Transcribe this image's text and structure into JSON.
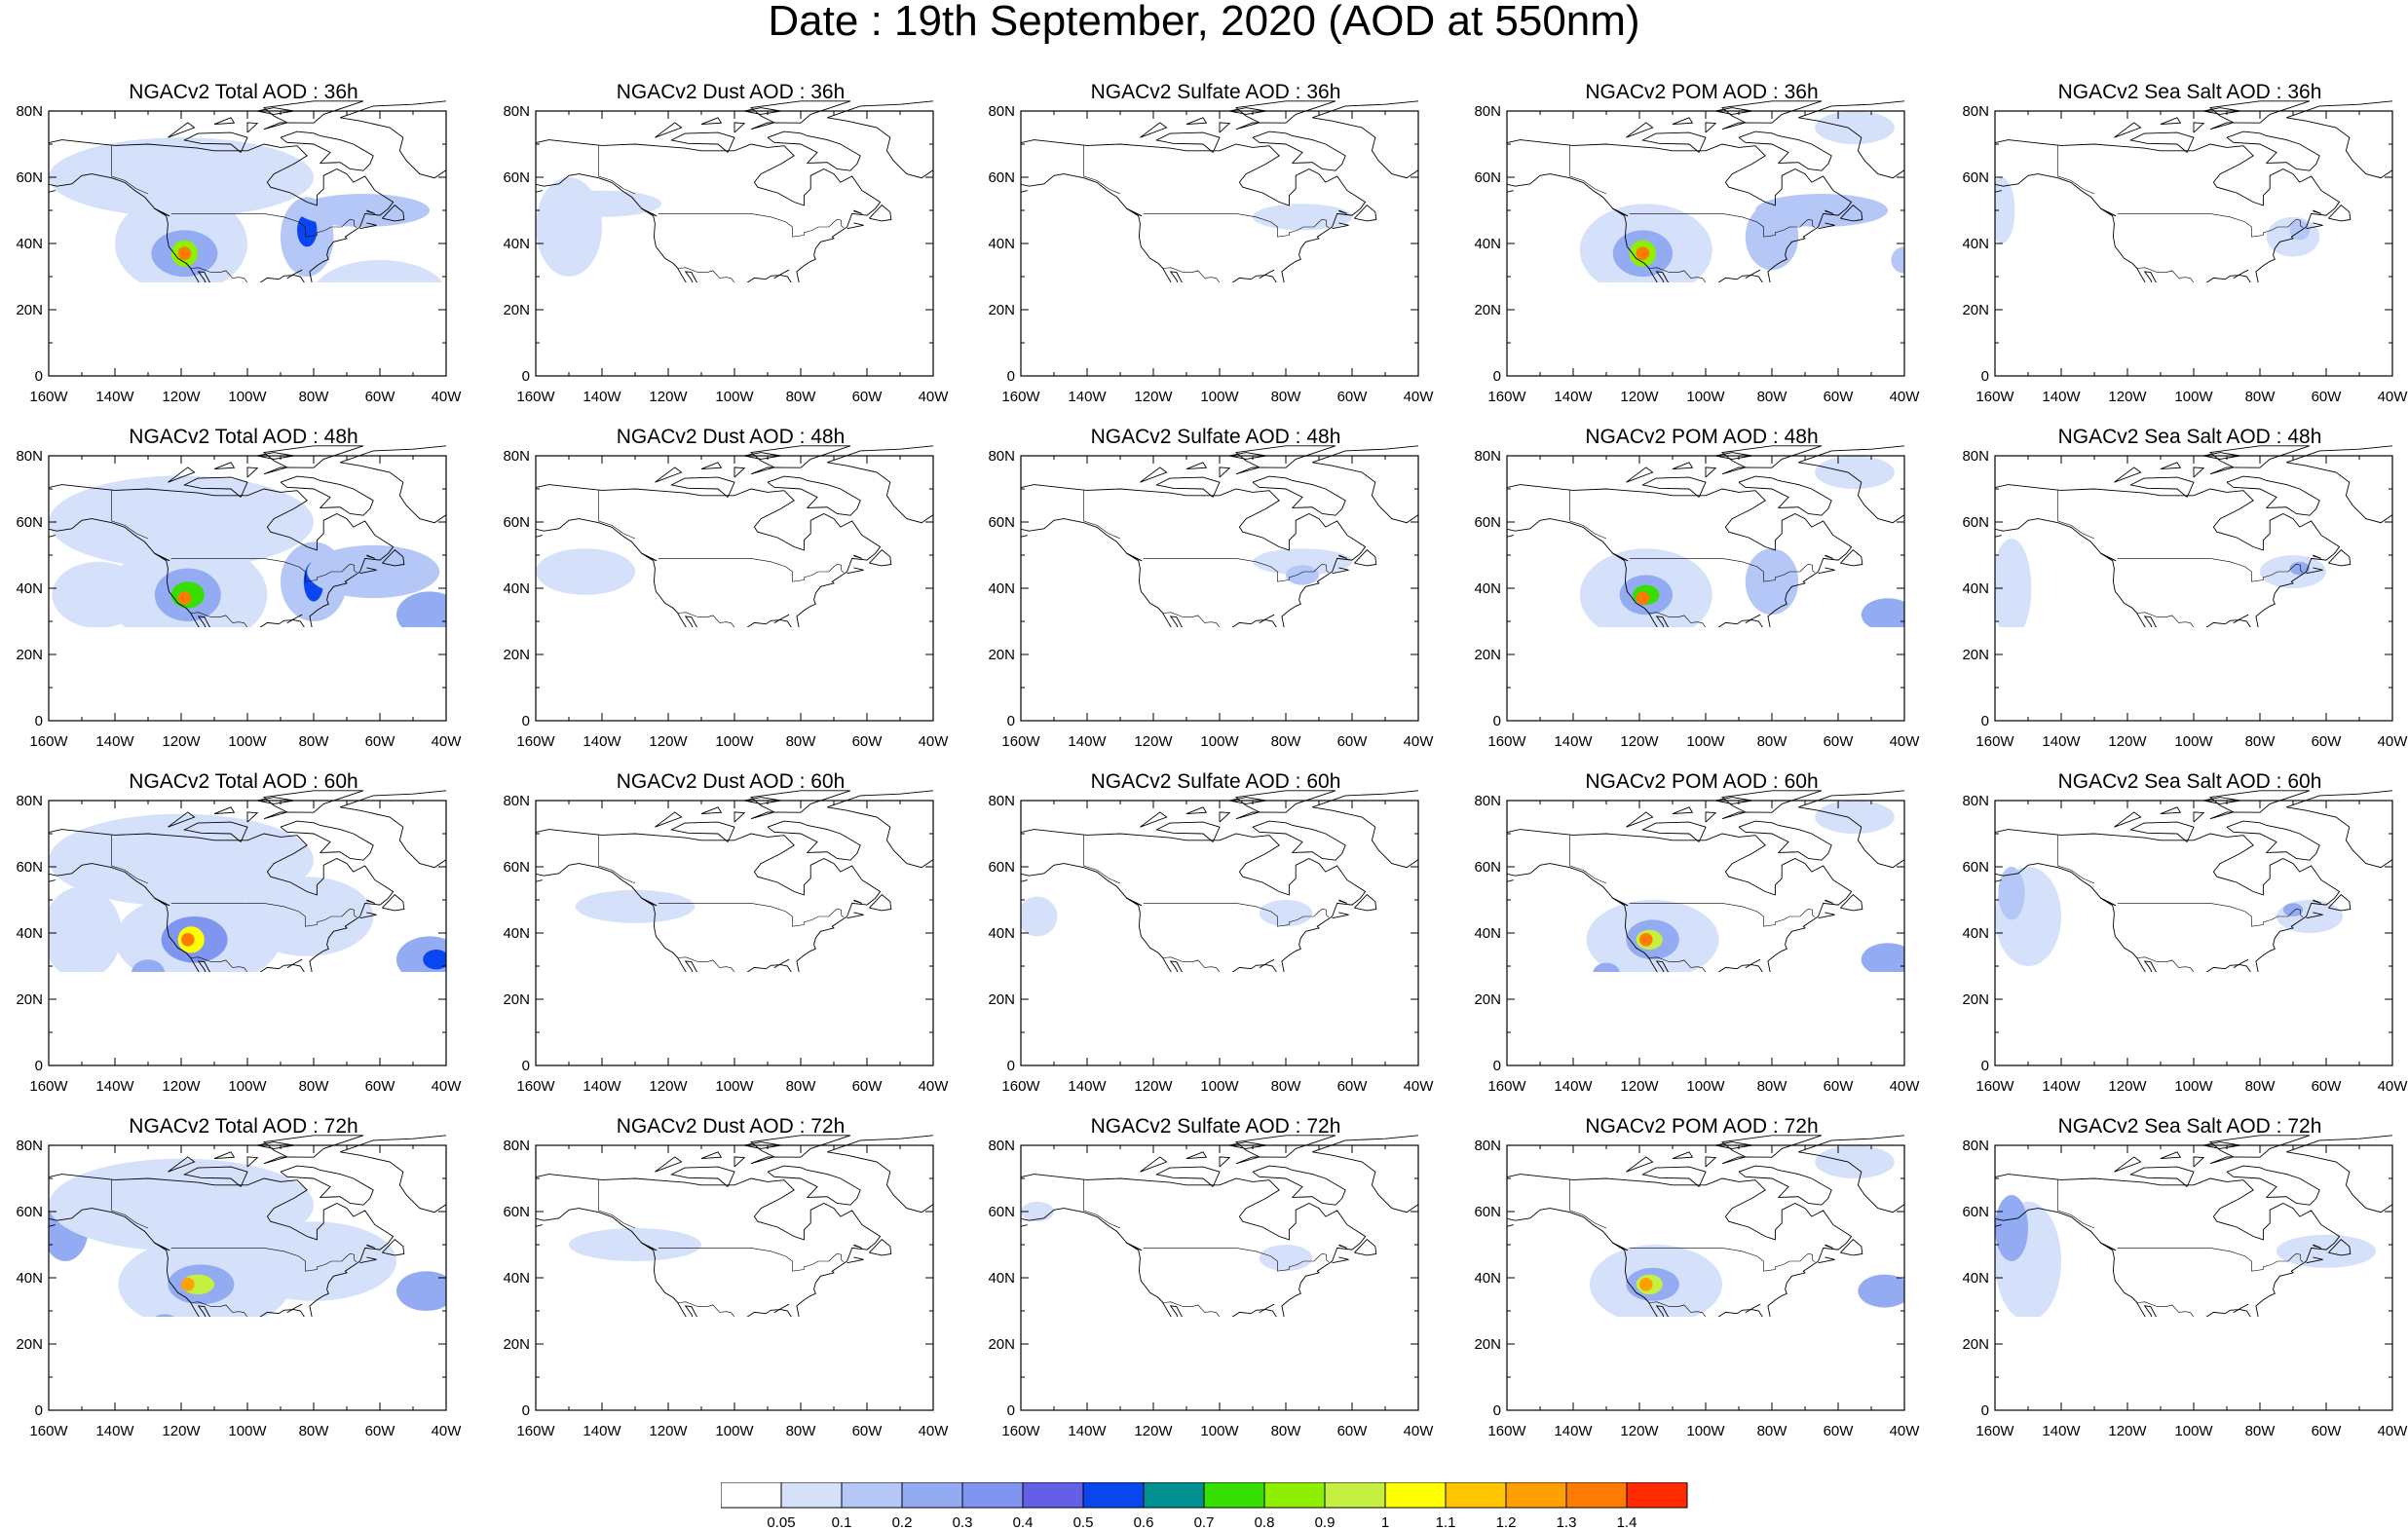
{
  "title": "Date : 19th September, 2020 (AOD at 550nm)",
  "x_ticks": [
    "160W",
    "140W",
    "120W",
    "100W",
    "80W",
    "60W",
    "40W"
  ],
  "y_ticks": [
    "0",
    "20N",
    "40N",
    "60N",
    "80N"
  ],
  "colorbar": {
    "labels": [
      "0.05",
      "0.1",
      "0.2",
      "0.3",
      "0.4",
      "0.5",
      "0.6",
      "0.7",
      "0.8",
      "0.9",
      "1",
      "1.1",
      "1.2",
      "1.3",
      "1.4"
    ],
    "colors": [
      "#ffffff",
      "#d5e0fb",
      "#b4c7f6",
      "#92abf2",
      "#7f95f0",
      "#6360e6",
      "#0a46f0",
      "#00908f",
      "#35e000",
      "#8ef000",
      "#c5f03f",
      "#ffff00",
      "#ffc400",
      "#ffa000",
      "#ff7a00",
      "#ff2a00"
    ]
  },
  "panels": [
    {
      "title": "NGACv2 Total AOD : 36h",
      "species": "total",
      "forecast_hour": 36
    },
    {
      "title": "NGACv2 Dust AOD : 36h",
      "species": "dust",
      "forecast_hour": 36
    },
    {
      "title": "NGACv2 Sulfate AOD : 36h",
      "species": "sulfate",
      "forecast_hour": 36
    },
    {
      "title": "NGACv2 POM AOD : 36h",
      "species": "pom",
      "forecast_hour": 36
    },
    {
      "title": "NGACv2 Sea Salt AOD : 36h",
      "species": "seasalt",
      "forecast_hour": 36
    },
    {
      "title": "NGACv2 Total AOD : 48h",
      "species": "total",
      "forecast_hour": 48
    },
    {
      "title": "NGACv2 Dust AOD : 48h",
      "species": "dust",
      "forecast_hour": 48
    },
    {
      "title": "NGACv2 Sulfate AOD : 48h",
      "species": "sulfate",
      "forecast_hour": 48
    },
    {
      "title": "NGACv2 POM AOD : 48h",
      "species": "pom",
      "forecast_hour": 48
    },
    {
      "title": "NGACv2 Sea Salt AOD : 48h",
      "species": "seasalt",
      "forecast_hour": 48
    },
    {
      "title": "NGACv2 Total AOD : 60h",
      "species": "total",
      "forecast_hour": 60
    },
    {
      "title": "NGACv2 Dust AOD : 60h",
      "species": "dust",
      "forecast_hour": 60
    },
    {
      "title": "NGACv2 Sulfate AOD : 60h",
      "species": "sulfate",
      "forecast_hour": 60
    },
    {
      "title": "NGACv2 POM AOD : 60h",
      "species": "pom",
      "forecast_hour": 60
    },
    {
      "title": "NGACv2 Sea Salt AOD : 60h",
      "species": "seasalt",
      "forecast_hour": 60
    },
    {
      "title": "NGACv2 Total AOD : 72h",
      "species": "total",
      "forecast_hour": 72
    },
    {
      "title": "NGACv2 Dust AOD : 72h",
      "species": "dust",
      "forecast_hour": 72
    },
    {
      "title": "NGACv2 Sulfate AOD : 72h",
      "species": "sulfate",
      "forecast_hour": 72
    },
    {
      "title": "NGACv2 POM AOD : 72h",
      "species": "pom",
      "forecast_hour": 72
    },
    {
      "title": "NGACv2 Sea Salt  AOD : 72h",
      "species": "seasalt",
      "forecast_hour": 72
    }
  ]
}
